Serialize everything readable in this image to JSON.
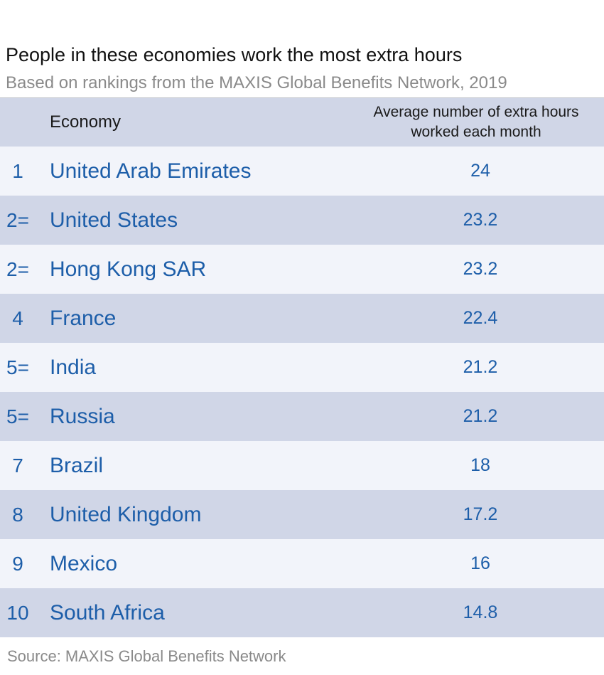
{
  "title": "People in these economies work the most extra hours",
  "subtitle": "Based on rankings from the MAXIS Global Benefits Network, 2019",
  "source": "Source: MAXIS Global Benefits Network",
  "colors": {
    "header_band": "#d0d6e7",
    "row_light": "#f2f4fa",
    "row_dark": "#d0d6e7",
    "accent_text": "#1d5ea9",
    "muted_text": "#8a8a8a"
  },
  "chart_data": {
    "type": "table",
    "title": "People in these economies work the most extra hours",
    "subtitle": "Based on rankings from the MAXIS Global Benefits Network, 2019",
    "columns": [
      "",
      "Economy",
      "Average number of extra hours worked each month"
    ],
    "rows": [
      {
        "rank": "1",
        "economy": "United Arab Emirates",
        "value": "24"
      },
      {
        "rank": "2=",
        "economy": "United States",
        "value": "23.2"
      },
      {
        "rank": "2=",
        "economy": "Hong Kong SAR",
        "value": "23.2"
      },
      {
        "rank": "4",
        "economy": "France",
        "value": "22.4"
      },
      {
        "rank": "5=",
        "economy": "India",
        "value": "21.2"
      },
      {
        "rank": "5=",
        "economy": "Russia",
        "value": "21.2"
      },
      {
        "rank": "7",
        "economy": "Brazil",
        "value": "18"
      },
      {
        "rank": "8",
        "economy": "United Kingdom",
        "value": "17.2"
      },
      {
        "rank": "9",
        "economy": "Mexico",
        "value": "16"
      },
      {
        "rank": "10",
        "economy": "South Africa",
        "value": "14.8"
      }
    ],
    "source": "Source: MAXIS Global Benefits Network"
  }
}
